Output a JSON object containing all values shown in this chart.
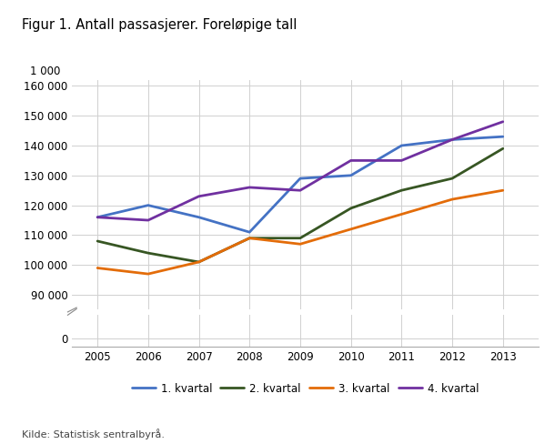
{
  "title": "Figur 1. Antall passasjerer. Foreløpige tall",
  "source": "Kilde: Statistisk sentralbyrå.",
  "years": [
    2005,
    2006,
    2007,
    2008,
    2009,
    2010,
    2011,
    2012,
    2013
  ],
  "series": [
    {
      "key": "1. kvartal",
      "values": [
        116000,
        120000,
        116000,
        111000,
        129000,
        130000,
        140000,
        142000,
        143000
      ],
      "color": "#4472c4"
    },
    {
      "key": "2. kvartal",
      "values": [
        108000,
        104000,
        101000,
        109000,
        109000,
        119000,
        125000,
        129000,
        139000
      ],
      "color": "#375623"
    },
    {
      "key": "3. kvartal",
      "values": [
        99000,
        97000,
        101000,
        109000,
        107000,
        112000,
        117000,
        122000,
        125000
      ],
      "color": "#e36c09"
    },
    {
      "key": "4. kvartal",
      "values": [
        116000,
        115000,
        123000,
        126000,
        125000,
        135000,
        135000,
        142000,
        148000
      ],
      "color": "#7030a0"
    }
  ],
  "upper_ylim": [
    85000,
    162000
  ],
  "upper_yticks": [
    90000,
    100000,
    110000,
    120000,
    130000,
    140000,
    150000,
    160000
  ],
  "lower_ylim": [
    -5000,
    15000
  ],
  "lower_yticks": [
    0
  ],
  "xlim": [
    2004.5,
    2013.7
  ],
  "xticks": [
    2005,
    2006,
    2007,
    2008,
    2009,
    2010,
    2011,
    2012,
    2013
  ],
  "background_color": "#ffffff",
  "grid_color": "#d0d0d0",
  "line_width": 2.0,
  "upper_ratio": 0.88,
  "lower_ratio": 0.12
}
